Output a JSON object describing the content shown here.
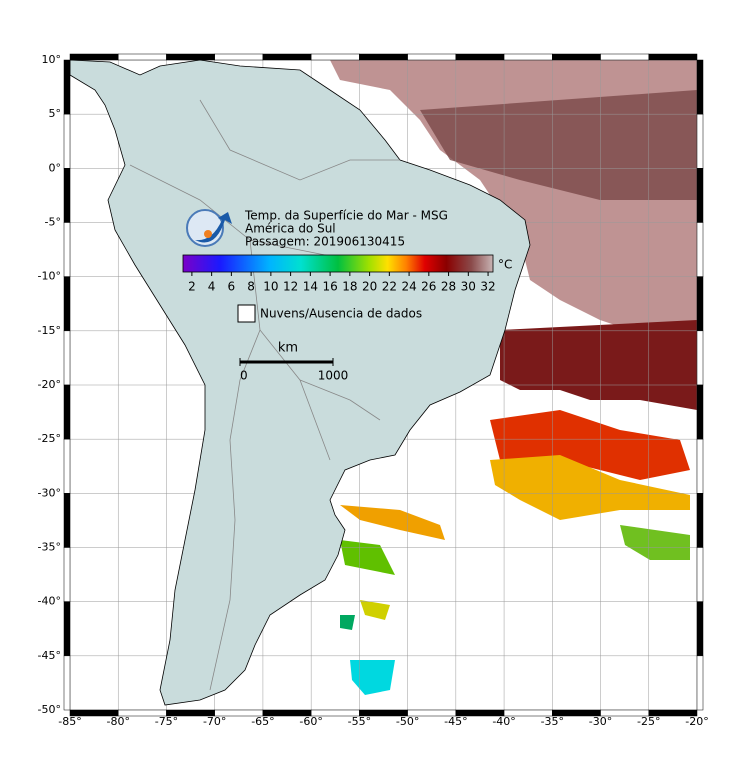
{
  "map": {
    "xlim": [
      -85,
      -20
    ],
    "ylim": [
      -50,
      10
    ],
    "xticks": [
      {
        "value": -85,
        "label": "-85°"
      },
      {
        "value": -80,
        "label": "-80°"
      },
      {
        "value": -75,
        "label": "-75°"
      },
      {
        "value": -70,
        "label": "-70°"
      },
      {
        "value": -65,
        "label": "-65°"
      },
      {
        "value": -60,
        "label": "-60°"
      },
      {
        "value": -55,
        "label": "-55°"
      },
      {
        "value": -50,
        "label": "-50°"
      },
      {
        "value": -45,
        "label": "-45°"
      },
      {
        "value": -40,
        "label": "-40°"
      },
      {
        "value": -35,
        "label": "-35°"
      },
      {
        "value": -30,
        "label": "-30°"
      },
      {
        "value": -25,
        "label": "-25°"
      },
      {
        "value": -20,
        "label": "-20°"
      }
    ],
    "yticks": [
      {
        "value": 10,
        "label": "10°"
      },
      {
        "value": 5,
        "label": "5°"
      },
      {
        "value": 0,
        "label": "0°"
      },
      {
        "value": -5,
        "label": "-5°"
      },
      {
        "value": -10,
        "label": "-10°"
      },
      {
        "value": -15,
        "label": "-15°"
      },
      {
        "value": -20,
        "label": "-20°"
      },
      {
        "value": -25,
        "label": "-25°"
      },
      {
        "value": -30,
        "label": "-30°"
      },
      {
        "value": -35,
        "label": "-35°"
      },
      {
        "value": -40,
        "label": "-40°"
      },
      {
        "value": -45,
        "label": "-45°"
      },
      {
        "value": -50,
        "label": "-50°"
      }
    ],
    "grid": true
  },
  "legend": {
    "title": [
      "Temp. da Superfície do Mar - MSG",
      "América do Sul",
      "Passagem: 201906130415"
    ],
    "colorbar": {
      "range": [
        1.1,
        32.5
      ],
      "ticks": [
        2,
        4,
        6,
        8,
        10,
        12,
        14,
        16,
        18,
        20,
        22,
        24,
        26,
        28,
        30,
        32
      ],
      "unit": "°C"
    },
    "no_data": "Nuvens/Ausencia de dados"
  },
  "scale": {
    "unit": "km",
    "ticks": [
      0,
      1000
    ]
  }
}
